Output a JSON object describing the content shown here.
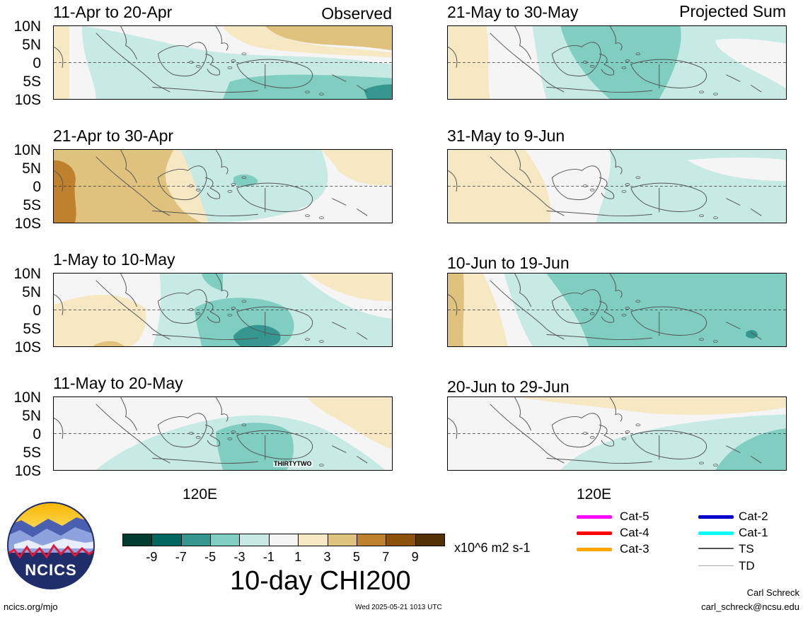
{
  "headers": {
    "observed": "Observed",
    "projected": "Projected Sum"
  },
  "lat_labels": [
    "10N",
    "5N",
    "0",
    "5S",
    "10S"
  ],
  "lon_label": "120E",
  "panels": [
    {
      "title": "11-Apr to 20-Apr",
      "pattern": "o1"
    },
    {
      "title": "21-Apr to 30-Apr",
      "pattern": "o2"
    },
    {
      "title": "1-May to 10-May",
      "pattern": "o3"
    },
    {
      "title": "11-May to 20-May",
      "pattern": "o4",
      "storm_label": "THIRTYTWO"
    },
    {
      "title": "21-May to 30-May",
      "pattern": "p1"
    },
    {
      "title": "31-May to 9-Jun",
      "pattern": "p2"
    },
    {
      "title": "10-Jun to 19-Jun",
      "pattern": "p3"
    },
    {
      "title": "20-Jun to 29-Jun",
      "pattern": "p4"
    }
  ],
  "colorbar": {
    "colors": [
      "#003c30",
      "#01665e",
      "#35978f",
      "#80cdc1",
      "#c7eae5",
      "#f5f5f5",
      "#f6e8c3",
      "#dfc27d",
      "#bf812d",
      "#8c510a",
      "#543005"
    ],
    "ticks": [
      "-9",
      "-7",
      "-5",
      "-3",
      "-1",
      "1",
      "3",
      "5",
      "7",
      "9"
    ],
    "units": "x10^6 m2 s-1",
    "title": "10-day CHI200"
  },
  "storm_legend": [
    {
      "label": "Cat-5",
      "color": "#ff00ff"
    },
    {
      "label": "Cat-4",
      "color": "#ff0000"
    },
    {
      "label": "Cat-3",
      "color": "#ffa500"
    },
    {
      "label": "Cat-2",
      "color": "#0000cc"
    },
    {
      "label": "Cat-1",
      "color": "#00ffff"
    },
    {
      "label": "TS",
      "color": "#555555"
    },
    {
      "label": "TD",
      "color": "#aaaaaa"
    }
  ],
  "logo": {
    "text": "NCICS"
  },
  "footer": {
    "url": "ncics.org/mjo",
    "timestamp": "Wed 2025-05-21 1013 UTC",
    "author": "Carl Schreck",
    "email": "carl_schreck@ncsu.edu"
  }
}
